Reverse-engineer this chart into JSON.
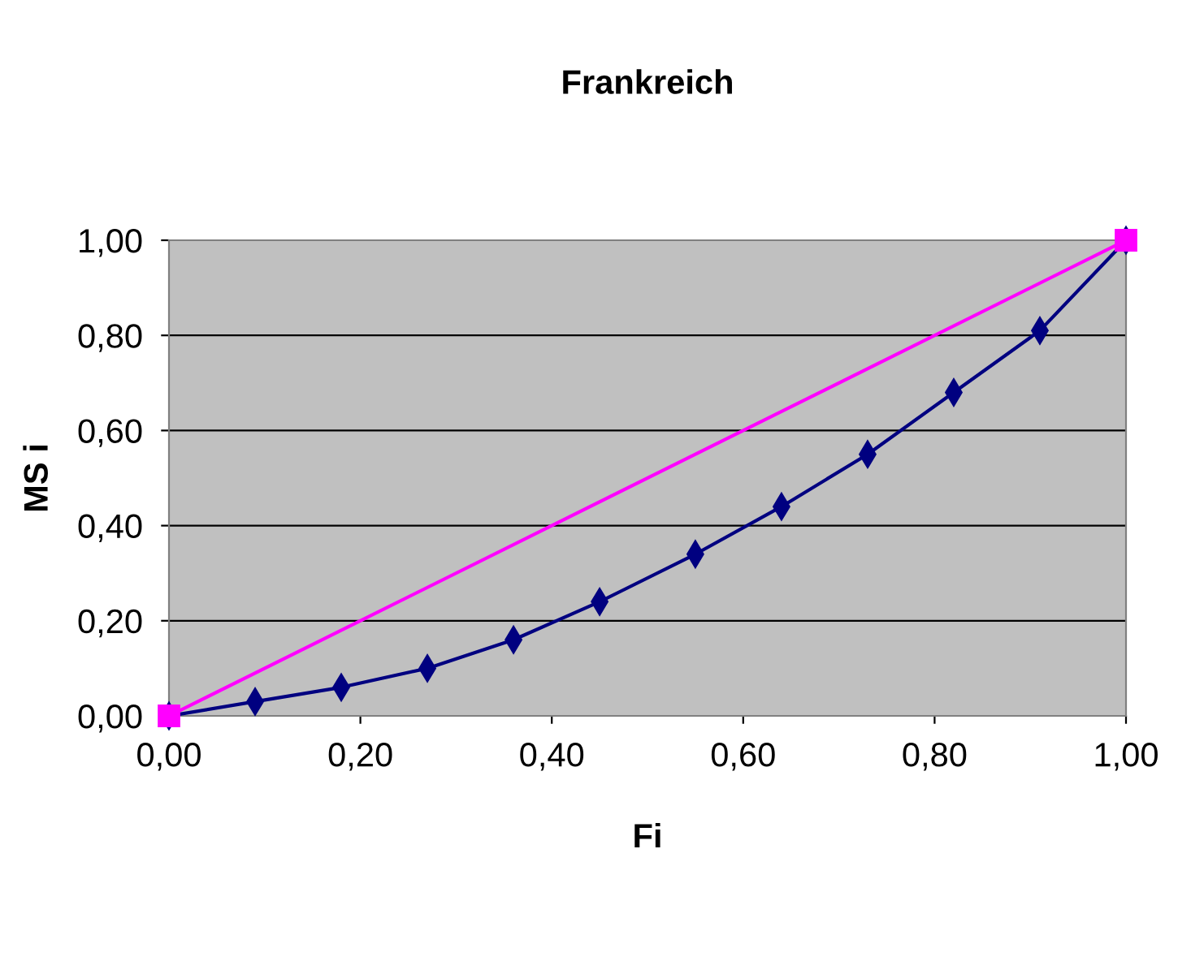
{
  "chart_data": {
    "type": "line",
    "title": "Frankreich",
    "xlabel": "Fi",
    "ylabel": "MS i",
    "xlim": [
      0,
      1
    ],
    "ylim": [
      0,
      1
    ],
    "xticks": [
      {
        "value": 0,
        "label": "0,00"
      },
      {
        "value": 0.2,
        "label": "0,20"
      },
      {
        "value": 0.4,
        "label": "0,40"
      },
      {
        "value": 0.6,
        "label": "0,60"
      },
      {
        "value": 0.8,
        "label": "0,80"
      },
      {
        "value": 1,
        "label": "1,00"
      }
    ],
    "yticks": [
      {
        "value": 0,
        "label": "0,00"
      },
      {
        "value": 0.2,
        "label": "0,20"
      },
      {
        "value": 0.4,
        "label": "0,40"
      },
      {
        "value": 0.6,
        "label": "0,60"
      },
      {
        "value": 0.8,
        "label": "0,80"
      },
      {
        "value": 1,
        "label": "1,00"
      }
    ],
    "grid": "y",
    "legend": false,
    "series": [
      {
        "color": "#000080",
        "marker": "diamond",
        "x": [
          0,
          0.09,
          0.18,
          0.27,
          0.36,
          0.45,
          0.55,
          0.64,
          0.73,
          0.82,
          0.91,
          1
        ],
        "values": [
          0,
          0.03,
          0.06,
          0.1,
          0.16,
          0.24,
          0.34,
          0.44,
          0.55,
          0.68,
          0.81,
          1
        ]
      },
      {
        "color": "#ff00ff",
        "marker": "square",
        "x": [
          0,
          1
        ],
        "values": [
          0,
          1
        ]
      }
    ]
  }
}
